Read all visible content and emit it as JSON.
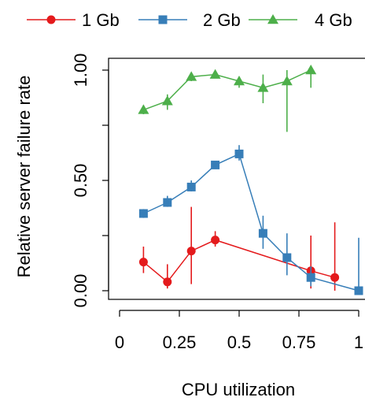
{
  "chart_data": {
    "type": "line",
    "title": "",
    "xlabel": "CPU utilization",
    "ylabel": "Relative server failure rate",
    "xlim": [
      -0.02,
      1.0
    ],
    "ylim": [
      -0.03,
      1.05
    ],
    "x_ticks": [
      0,
      0.25,
      0.5,
      0.75,
      1
    ],
    "x_tick_labels": [
      "0",
      "0.25",
      "0.5",
      "0.75",
      "1"
    ],
    "y_ticks": [
      0,
      0.5,
      1.0
    ],
    "y_tick_labels": [
      "0.00",
      "0.50",
      "1.00"
    ],
    "y_minor_ticks": [
      0.25,
      0.75
    ],
    "grid": false,
    "legend_position": "top",
    "series": [
      {
        "name": "1 Gb",
        "color": "#e41a1c",
        "marker": "circle",
        "points": [
          {
            "x": 0.1,
            "y": 0.13,
            "lo": 0.08,
            "hi": 0.2
          },
          {
            "x": 0.2,
            "y": 0.04,
            "lo": 0.01,
            "hi": 0.12
          },
          {
            "x": 0.3,
            "y": 0.18,
            "lo": 0.03,
            "hi": 0.38
          },
          {
            "x": 0.4,
            "y": 0.23,
            "lo": 0.2,
            "hi": 0.27
          },
          {
            "x": 0.8,
            "y": 0.09,
            "lo": 0.01,
            "hi": 0.25
          },
          {
            "x": 0.9,
            "y": 0.06,
            "lo": 0.0,
            "hi": 0.31
          }
        ]
      },
      {
        "name": "2 Gb",
        "color": "#377eb8",
        "marker": "square",
        "points": [
          {
            "x": 0.1,
            "y": 0.35,
            "lo": 0.33,
            "hi": 0.37
          },
          {
            "x": 0.2,
            "y": 0.4,
            "lo": 0.38,
            "hi": 0.43
          },
          {
            "x": 0.3,
            "y": 0.47,
            "lo": 0.45,
            "hi": 0.5
          },
          {
            "x": 0.4,
            "y": 0.57,
            "lo": 0.56,
            "hi": 0.58
          },
          {
            "x": 0.5,
            "y": 0.62,
            "lo": 0.59,
            "hi": 0.66
          },
          {
            "x": 0.6,
            "y": 0.26,
            "lo": 0.19,
            "hi": 0.34
          },
          {
            "x": 0.7,
            "y": 0.15,
            "lo": 0.07,
            "hi": 0.26
          },
          {
            "x": 0.8,
            "y": 0.06,
            "lo": 0.02,
            "hi": 0.11
          },
          {
            "x": 1.0,
            "y": 0.0,
            "lo": 0.0,
            "hi": 0.24
          }
        ]
      },
      {
        "name": "4 Gb",
        "color": "#4daf4a",
        "marker": "triangle",
        "points": [
          {
            "x": 0.1,
            "y": 0.82,
            "lo": 0.8,
            "hi": 0.84
          },
          {
            "x": 0.2,
            "y": 0.86,
            "lo": 0.82,
            "hi": 0.89
          },
          {
            "x": 0.3,
            "y": 0.97,
            "lo": 0.95,
            "hi": 0.98
          },
          {
            "x": 0.4,
            "y": 0.98,
            "lo": 0.97,
            "hi": 0.99
          },
          {
            "x": 0.5,
            "y": 0.95,
            "lo": 0.92,
            "hi": 0.97
          },
          {
            "x": 0.6,
            "y": 0.92,
            "lo": 0.85,
            "hi": 0.98
          },
          {
            "x": 0.7,
            "y": 0.95,
            "lo": 0.72,
            "hi": 1.0
          },
          {
            "x": 0.8,
            "y": 1.0,
            "lo": 0.92,
            "hi": 1.0
          }
        ]
      }
    ]
  }
}
